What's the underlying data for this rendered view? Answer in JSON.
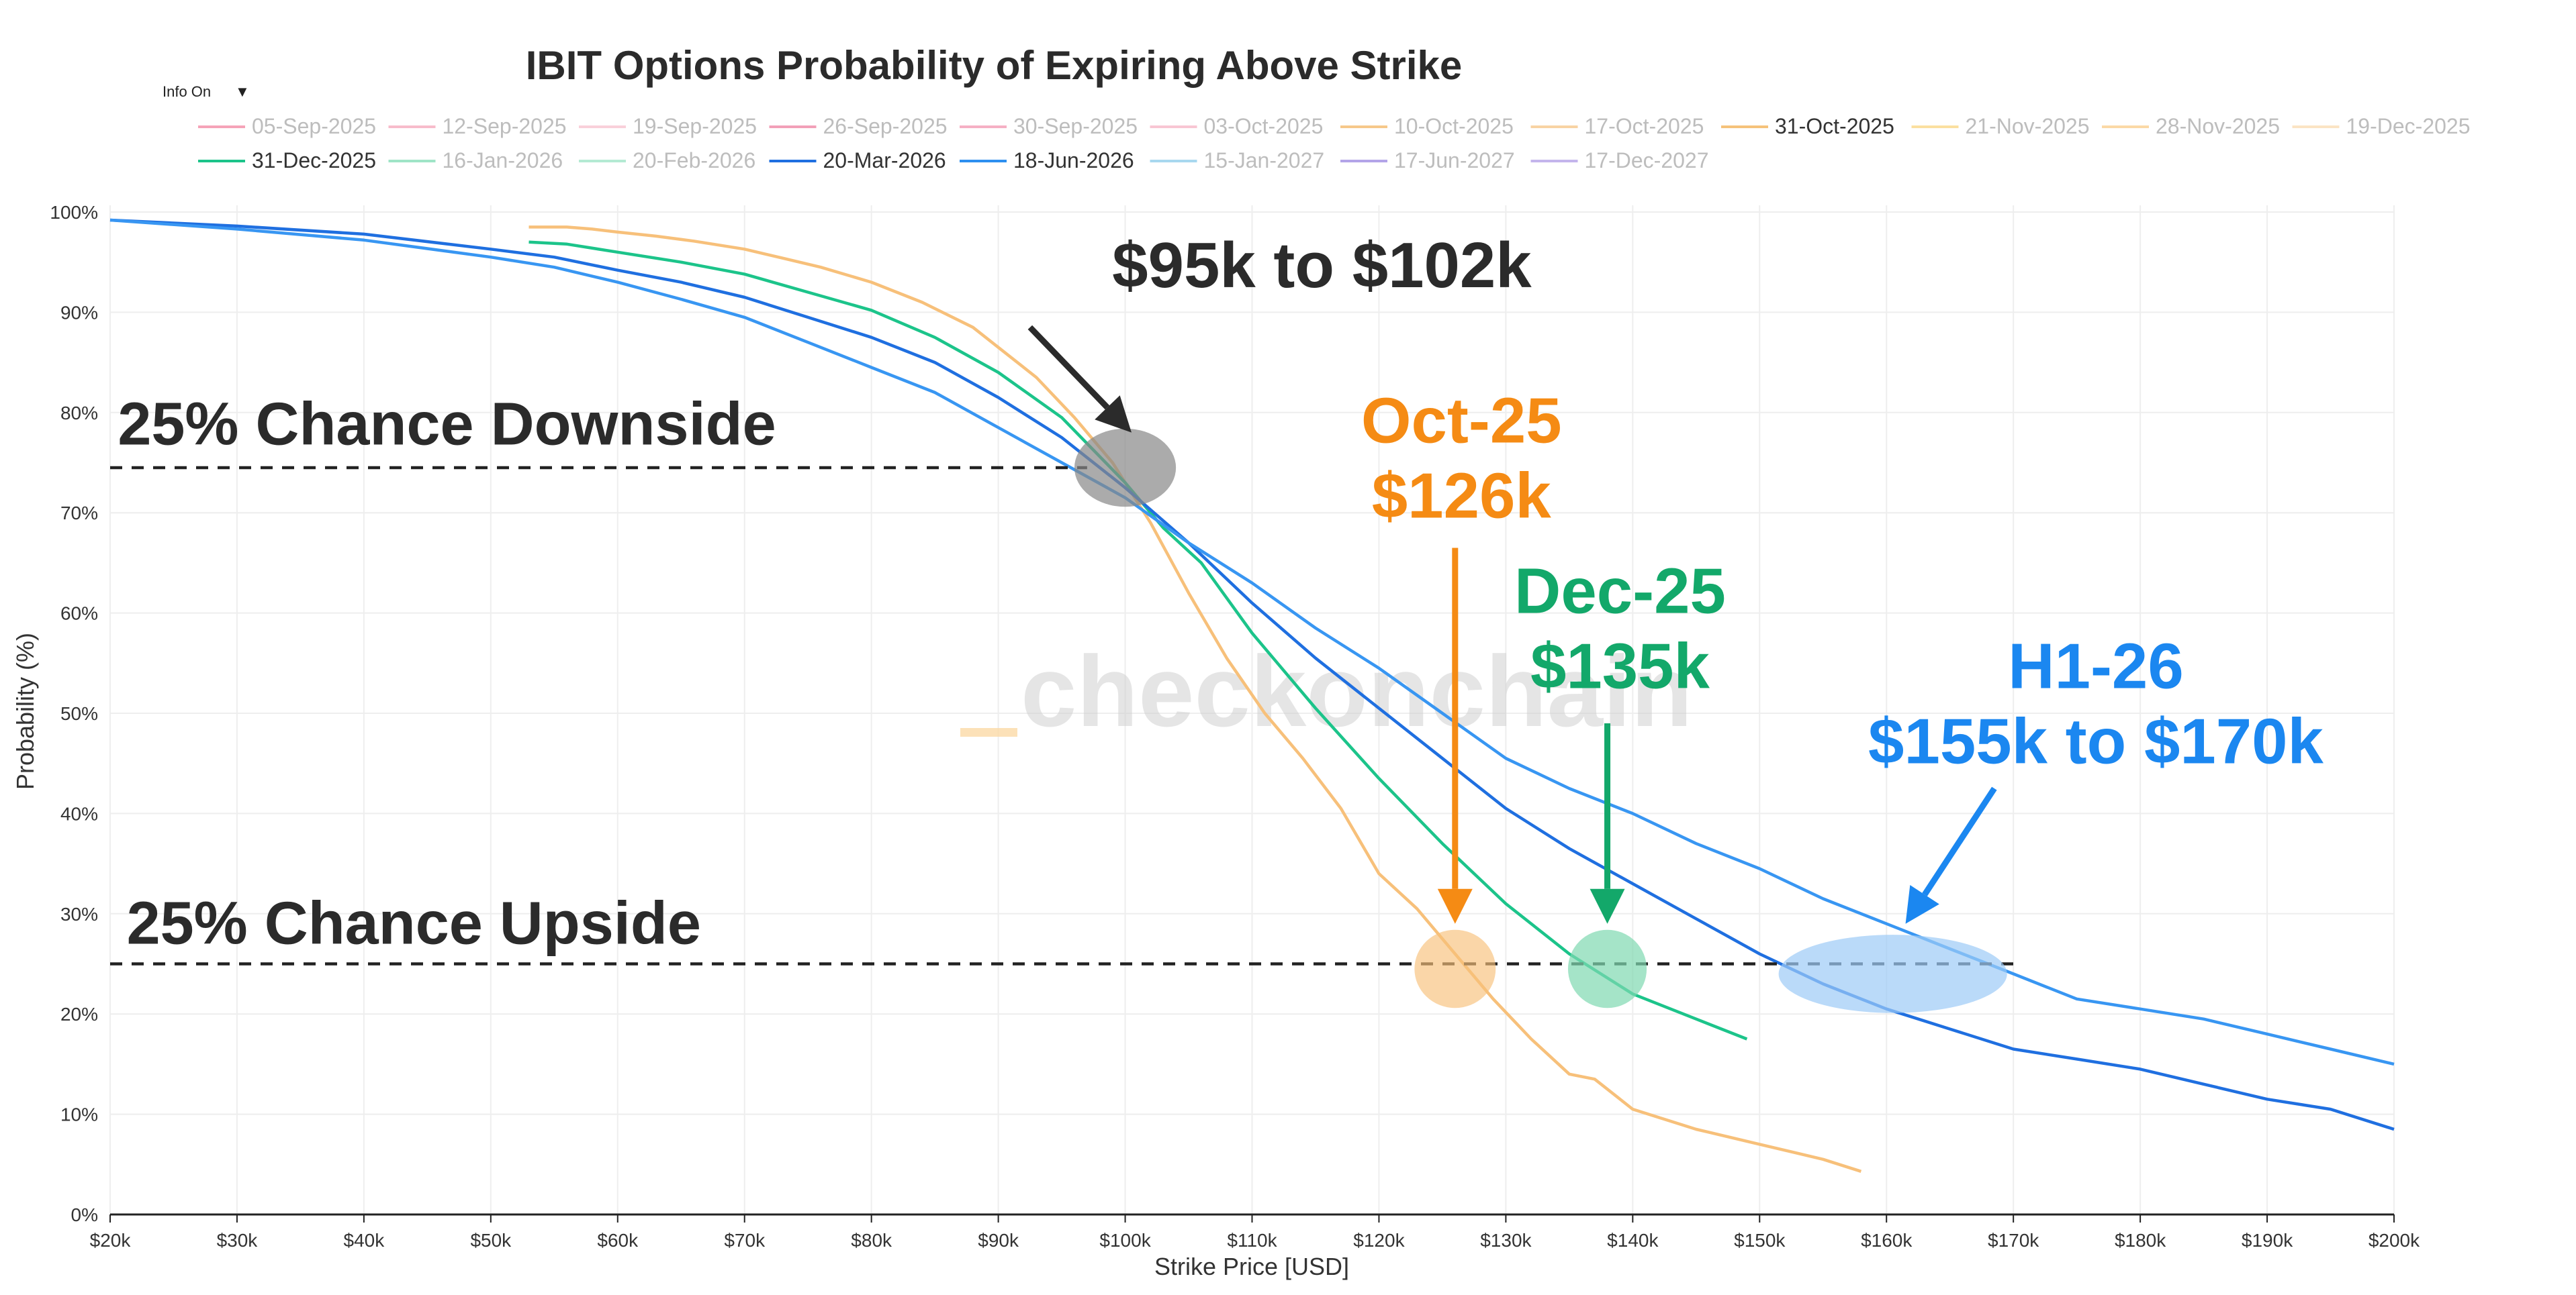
{
  "chart_data": {
    "type": "line",
    "title": "IBIT Options Probability of Expiring Above Strike",
    "xlabel": "Strike Price [USD]",
    "ylabel": "Probability (%)",
    "xlim": [
      20000,
      200000
    ],
    "ylim": [
      0,
      100
    ],
    "x_ticks": [
      {
        "value": 20000,
        "label": "$20k"
      },
      {
        "value": 30000,
        "label": "$30k"
      },
      {
        "value": 40000,
        "label": "$40k"
      },
      {
        "value": 50000,
        "label": "$50k"
      },
      {
        "value": 60000,
        "label": "$60k"
      },
      {
        "value": 70000,
        "label": "$70k"
      },
      {
        "value": 80000,
        "label": "$80k"
      },
      {
        "value": 90000,
        "label": "$90k"
      },
      {
        "value": 100000,
        "label": "$100k"
      },
      {
        "value": 110000,
        "label": "$110k"
      },
      {
        "value": 120000,
        "label": "$120k"
      },
      {
        "value": 130000,
        "label": "$130k"
      },
      {
        "value": 140000,
        "label": "$140k"
      },
      {
        "value": 150000,
        "label": "$150k"
      },
      {
        "value": 160000,
        "label": "$160k"
      },
      {
        "value": 170000,
        "label": "$170k"
      },
      {
        "value": 180000,
        "label": "$180k"
      },
      {
        "value": 190000,
        "label": "$190k"
      },
      {
        "value": 200000,
        "label": "$200k"
      }
    ],
    "y_ticks": [
      {
        "value": 0,
        "label": "0%"
      },
      {
        "value": 10,
        "label": "10%"
      },
      {
        "value": 20,
        "label": "20%"
      },
      {
        "value": 30,
        "label": "30%"
      },
      {
        "value": 40,
        "label": "40%"
      },
      {
        "value": 50,
        "label": "50%"
      },
      {
        "value": 60,
        "label": "60%"
      },
      {
        "value": 70,
        "label": "70%"
      },
      {
        "value": 80,
        "label": "80%"
      },
      {
        "value": 90,
        "label": "90%"
      },
      {
        "value": 100,
        "label": "100%"
      }
    ],
    "grid": true,
    "legend_position": "top",
    "legend": [
      {
        "name": "05-Sep-2025",
        "color": "#f5a3b8",
        "visible": false
      },
      {
        "name": "12-Sep-2025",
        "color": "#f7bccb",
        "visible": false
      },
      {
        "name": "19-Sep-2025",
        "color": "#f9d0da",
        "visible": false
      },
      {
        "name": "26-Sep-2025",
        "color": "#f2a0b8",
        "visible": false
      },
      {
        "name": "30-Sep-2025",
        "color": "#f5b0c4",
        "visible": false
      },
      {
        "name": "03-Oct-2025",
        "color": "#f8c6d3",
        "visible": false
      },
      {
        "name": "10-Oct-2025",
        "color": "#f6c88a",
        "visible": false
      },
      {
        "name": "17-Oct-2025",
        "color": "#f8d3a3",
        "visible": false
      },
      {
        "name": "31-Oct-2025",
        "color": "#f5c27a",
        "visible": true
      },
      {
        "name": "21-Nov-2025",
        "color": "#fbe0a0",
        "visible": false
      },
      {
        "name": "28-Nov-2025",
        "color": "#fbd9a6",
        "visible": false
      },
      {
        "name": "19-Dec-2025",
        "color": "#fbe4c4",
        "visible": false
      },
      {
        "name": "31-Dec-2025",
        "color": "#1cc48a",
        "visible": true
      },
      {
        "name": "16-Jan-2026",
        "color": "#9fe4c7",
        "visible": false
      },
      {
        "name": "20-Feb-2026",
        "color": "#b4ead3",
        "visible": false
      },
      {
        "name": "20-Mar-2026",
        "color": "#1f6fe0",
        "visible": true
      },
      {
        "name": "18-Jun-2026",
        "color": "#2d8ff0",
        "visible": true
      },
      {
        "name": "15-Jan-2027",
        "color": "#a8d8ef",
        "visible": false
      },
      {
        "name": "17-Jun-2027",
        "color": "#b3a4e8",
        "visible": false
      },
      {
        "name": "17-Dec-2027",
        "color": "#c4b5ec",
        "visible": false
      }
    ],
    "series": [
      {
        "name": "31-Oct-2025",
        "color": "#f7c07a",
        "x": [
          53000,
          56000,
          58000,
          60000,
          63000,
          66000,
          70000,
          73000,
          76000,
          80000,
          84000,
          88000,
          90000,
          93000,
          96000,
          99000,
          102000,
          105000,
          108000,
          111000,
          114000,
          117000,
          120000,
          123000,
          126000,
          129000,
          132000,
          135000,
          137000,
          140000,
          145000,
          150000,
          155000,
          158000
        ],
        "y": [
          98.5,
          98.5,
          98.3,
          98.0,
          97.6,
          97.1,
          96.3,
          95.4,
          94.5,
          93.0,
          91.0,
          88.5,
          86.5,
          83.5,
          79.5,
          75.0,
          69.0,
          62.0,
          55.5,
          50.0,
          45.5,
          40.5,
          34.0,
          30.5,
          26.0,
          21.5,
          17.5,
          14.0,
          13.5,
          10.5,
          8.5,
          7.0,
          5.5,
          4.3
        ]
      },
      {
        "name": "31-Dec-2025",
        "color": "#1cc48a",
        "x": [
          53000,
          56000,
          60000,
          65000,
          70000,
          75000,
          80000,
          85000,
          90000,
          95000,
          100000,
          103000,
          106000,
          110000,
          115000,
          120000,
          125000,
          130000,
          135000,
          140000,
          145000,
          149000
        ],
        "y": [
          97.0,
          96.8,
          96.0,
          95.0,
          93.8,
          92.0,
          90.2,
          87.5,
          84.0,
          79.5,
          73.0,
          68.5,
          65.0,
          58.0,
          50.5,
          43.5,
          37.0,
          31.0,
          26.0,
          22.0,
          19.5,
          17.5
        ]
      },
      {
        "name": "20-Mar-2026",
        "color": "#1f6fe0",
        "x": [
          20000,
          30000,
          40000,
          50000,
          55000,
          60000,
          65000,
          70000,
          75000,
          80000,
          85000,
          90000,
          95000,
          100000,
          105000,
          110000,
          115000,
          120000,
          125000,
          130000,
          135000,
          140000,
          145000,
          150000,
          155000,
          160000,
          165000,
          170000,
          175000,
          180000,
          185000,
          190000,
          195000,
          200000
        ],
        "y": [
          99.2,
          98.6,
          97.8,
          96.3,
          95.5,
          94.2,
          93.0,
          91.5,
          89.5,
          87.5,
          85.0,
          81.5,
          77.5,
          72.5,
          67.0,
          61.0,
          55.5,
          50.5,
          45.5,
          40.5,
          36.5,
          33.0,
          29.5,
          26.0,
          23.0,
          20.5,
          18.5,
          16.5,
          15.5,
          14.5,
          13.0,
          11.5,
          10.5,
          8.5
        ]
      },
      {
        "name": "18-Jun-2026",
        "color": "#3896f2",
        "x": [
          20000,
          30000,
          40000,
          50000,
          55000,
          60000,
          65000,
          70000,
          75000,
          80000,
          85000,
          90000,
          95000,
          100000,
          105000,
          110000,
          115000,
          120000,
          125000,
          130000,
          135000,
          140000,
          145000,
          150000,
          155000,
          160000,
          165000,
          170000,
          175000,
          180000,
          185000,
          190000,
          195000,
          200000
        ],
        "y": [
          99.2,
          98.3,
          97.2,
          95.5,
          94.5,
          93.0,
          91.3,
          89.5,
          87.0,
          84.5,
          82.0,
          78.5,
          75.0,
          71.5,
          67.0,
          63.0,
          58.5,
          54.5,
          50.0,
          45.5,
          42.5,
          40.0,
          37.0,
          34.5,
          31.5,
          29.0,
          26.5,
          24.0,
          21.5,
          20.5,
          19.5,
          18.0,
          16.5,
          15.0
        ]
      }
    ],
    "reference_lines": [
      {
        "y": 74.5,
        "x_from": 20000,
        "x_to": 97000,
        "color": "#222222",
        "dash": true
      },
      {
        "y": 25,
        "x_from": 20000,
        "x_to": 170000,
        "color": "#222222",
        "dash": true
      }
    ],
    "highlight_regions": [
      {
        "cx": 100000,
        "cy": 74.5,
        "rx": 4000,
        "ry": 3.9,
        "color": "#888888",
        "opacity": 0.7
      },
      {
        "cx": 126000,
        "cy": 24.5,
        "rx": 3200,
        "ry": 3.9,
        "color": "#f7c07a",
        "opacity": 0.65
      },
      {
        "cx": 138000,
        "cy": 24.5,
        "rx": 3100,
        "ry": 3.9,
        "color": "#7fd9b1",
        "opacity": 0.7
      },
      {
        "cx": 160500,
        "cy": 24.0,
        "rx": 9000,
        "ry": 3.9,
        "color": "#9ccaf7",
        "opacity": 0.7
      }
    ],
    "annotations": [
      {
        "text": "$95k to $102k",
        "color": "#2b2b2b",
        "x": 115500,
        "y": 92.5,
        "anchor": "middle",
        "class": "callout"
      },
      {
        "text": "Oct-25",
        "color": "#f58b14",
        "x": 126500,
        "y": 77,
        "anchor": "middle",
        "class": "callout"
      },
      {
        "text": "$126k",
        "color": "#f58b14",
        "x": 126500,
        "y": 69.5,
        "anchor": "middle",
        "class": "callout"
      },
      {
        "text": "Dec-25",
        "color": "#13a86a",
        "x": 139000,
        "y": 60,
        "anchor": "middle",
        "class": "callout"
      },
      {
        "text": "$135k",
        "color": "#13a86a",
        "x": 139000,
        "y": 52.5,
        "anchor": "middle",
        "class": "callout"
      },
      {
        "text": "H1-26",
        "color": "#1b87f0",
        "x": 176500,
        "y": 52.5,
        "anchor": "middle",
        "class": "callout"
      },
      {
        "text": "$155k to $170k",
        "color": "#1b87f0",
        "x": 176500,
        "y": 45,
        "anchor": "middle",
        "class": "callout"
      },
      {
        "text": "25% Chance Downside",
        "color": "#2b2b2b",
        "x": 20600,
        "y": 76.8,
        "anchor": "start",
        "class": "zone-label"
      },
      {
        "text": "25% Chance Upside",
        "color": "#2b2b2b",
        "x": 21300,
        "y": 27,
        "anchor": "start",
        "class": "zone-label"
      }
    ],
    "arrows": [
      {
        "x1": 92500,
        "y1": 88.5,
        "x2": 100500,
        "y2": 78.0,
        "color": "#2b2b2b"
      },
      {
        "x1": 126000,
        "y1": 66.5,
        "x2": 126000,
        "y2": 29.0,
        "color": "#f58b14"
      },
      {
        "x1": 138000,
        "y1": 49.0,
        "x2": 138000,
        "y2": 29.0,
        "color": "#13a86a"
      },
      {
        "x1": 168500,
        "y1": 42.5,
        "x2": 161500,
        "y2": 29.0,
        "color": "#1b87f0"
      }
    ],
    "watermark": "checkonchain",
    "info_toggle": "Info On"
  }
}
